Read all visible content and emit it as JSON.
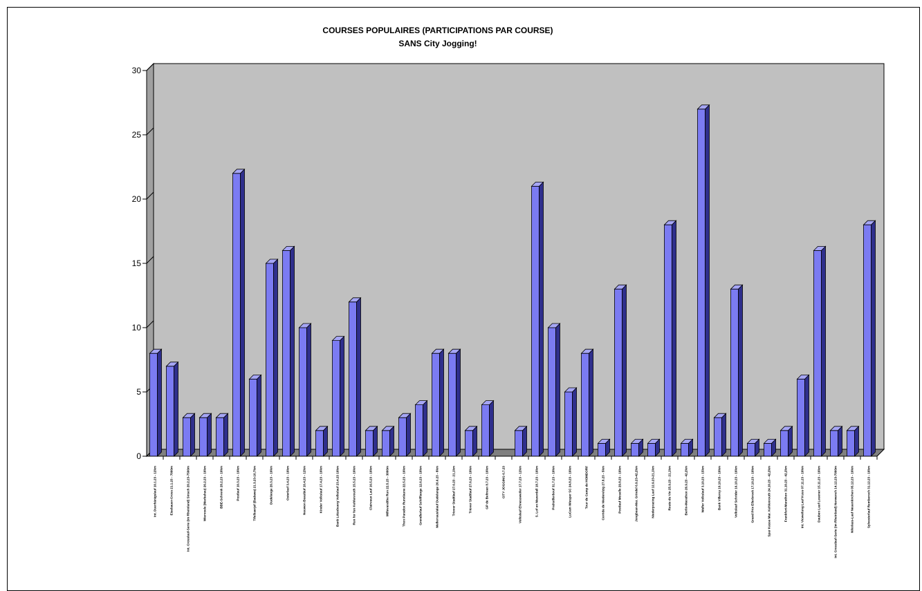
{
  "chart_data": {
    "type": "bar",
    "title": "COURSES POPULAIRES (PARTICIPATIONS PAR COURSE)",
    "subtitle": "SANS City Jogging!",
    "xlabel": "",
    "ylabel": "",
    "ylim": [
      0,
      30
    ],
    "yticks": [
      0,
      5,
      10,
      15,
      20,
      25,
      30
    ],
    "grid": false,
    "legend": "none",
    "colors": {
      "bar_front": "#7b7bf2",
      "bar_side": "#2f2f8c",
      "bar_top": "#a6a6f5",
      "wall": "#c0c0c0",
      "floor": "#808080"
    },
    "categories": [
      "Int. Duerhänigslauf 10.1.23 - 12km",
      "Eisebauer-Cross 21.1.23 - 7000m",
      "Int. Crosslauf-Serie (im Rheinland) Sinsch 20.2.23-7500m",
      "Wiervoele (Marbahau) 26.2.23 - 10km",
      "BBE-Schrenk 28.2.23 - 10km",
      "Postlauf 10.3.23 - 10km",
      "Tifelkaerjef (Badawa) 21.3.23-10,7km",
      "Dudelange 20.3.23 - 10km",
      "Osterlauf 3.4.23 - 10km",
      "Neuwon Beauläuf 10.4.23 - 12km",
      "Kinder Volkslauf 17.4.23 - 10km",
      "Bank Lëtzebuerg Volkslauf 23.4.23 10km",
      "Run for fun Kehlenrouth 15.5.23 - 10km",
      "Clairvaux Lauf 16.5.23 - 10km",
      "Millevaralthe Run 22.5.23 - 3000m",
      "Thon Paradox Runnlaune 22.5.23 - 10km",
      "Grendlerlauf Schifflange 12.6.23 - 10km",
      "Mellerrauslalauf Dudelange 26.6.23 - 8km",
      "Triover Stadtlauf 27.6.23 - 21,1km",
      "Triover Stadtlauf 27.6.23 - 10km",
      "GP de Beltrean 8.7.23 - 10km",
      "CITY JOGGING 6.7.23",
      "Volkslauf Ehnessweiler 17.7.23 - 12km",
      "S. Lof en Maxerdall 18.7.23 - 10km",
      "Prahstllerbouf 31.7.23 - 10km",
      "LuCam Wiesper SC 24.8.23 - 10km",
      "Tour de Camp de HOMDORF",
      "Corrida de Niederelzig 27.8.23 - 5km",
      "Postlauf Moselle 29.8.23 - 10km",
      "Jongbean-Mar. Grindel 6.9.23-42,2km",
      "Niederpracing Lauf 12.9.23-21,1km",
      "Route du Vin 25.9.23 - 21,1km",
      "Berlin-Marathon 26.9.23 - 42,2km",
      "Walfer Volkslauf 3.10.23 - 15km",
      "Bank Villeroy 10.10.23 - 10km",
      "Volkslauf Schrider 16.10.23 - 10km",
      "Grand Prix Ellerbrook 17.10.23 - 10km",
      "Spar Kasse Mar. Kehlenrouth 24.10.23 - 42,2km",
      "Frankfurt-Marathon 31.10.23 - 42,2km",
      "Int. Vicweilung Lauf Kuss 07.11.23 - 10km",
      "Dauben Lauf Leuener 15.11.23 - 10km",
      "Int. Crosslauf-Serie (im Rheinland) Nerwench 14.12.23-7000m",
      "Nikolaus-Lauf Neuenkirchen 05.12.23 - 10km",
      "Sylvesterlauf Remberoch 31.12.23 - 10km"
    ],
    "values": [
      8,
      7,
      3,
      3,
      3,
      22,
      6,
      15,
      16,
      10,
      2,
      9,
      12,
      2,
      2,
      3,
      4,
      8,
      8,
      2,
      4,
      0,
      2,
      21,
      10,
      5,
      8,
      1,
      13,
      1,
      1,
      18,
      1,
      27,
      3,
      13,
      1,
      1,
      2,
      6,
      16,
      2,
      2,
      18
    ]
  }
}
